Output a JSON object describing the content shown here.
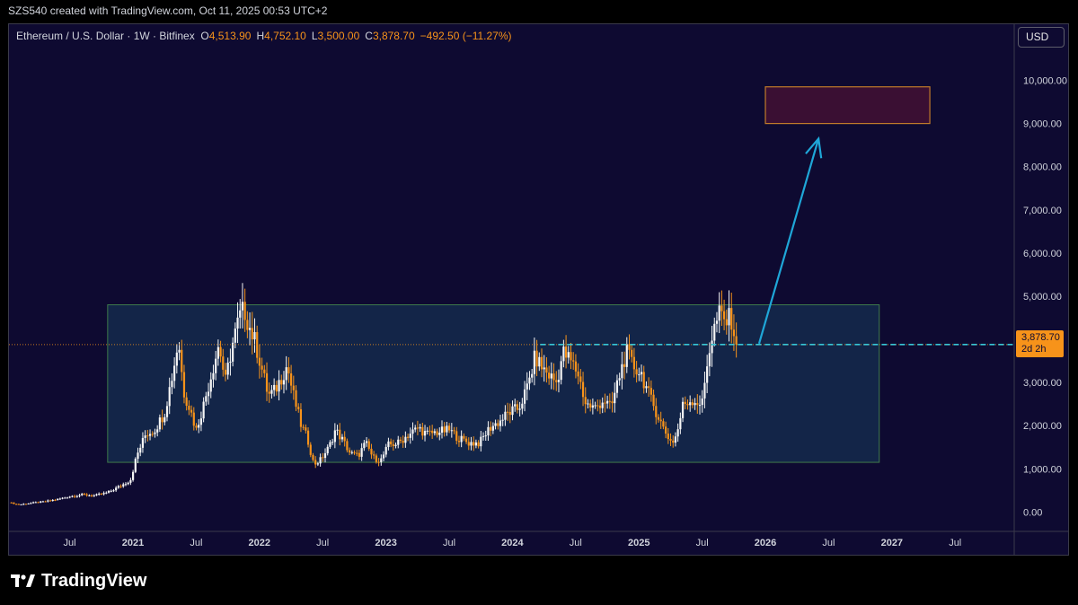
{
  "header": {
    "created_line": "SZS540 created with TradingView.com, Oct 11, 2025 00:53 UTC+2"
  },
  "legend": {
    "symbol": "Ethereum / U.S. Dollar · 1W · Bitfinex",
    "open_label": "O",
    "open": "4,513.90",
    "high_label": "H",
    "high": "4,752.10",
    "low_label": "L",
    "low": "3,500.00",
    "close_label": "C",
    "close": "3,878.70",
    "change": "−492.50 (−11.27%)"
  },
  "currency_button": "USD",
  "price_tag": {
    "price": "3,878.70",
    "countdown": "2d 2h"
  },
  "brand": {
    "name": "TradingView"
  },
  "colors": {
    "background": "#0e0a31",
    "up_candle": "#f5f5f5",
    "down_candle": "#f7931a",
    "range_box_border": "#3f7a4b",
    "range_box_fill": "#142a4c",
    "target_box_border": "#c07a2a",
    "target_box_fill": "#3a0f33",
    "arrow": "#1fa7d8",
    "current_price_line": "#38c7d6"
  },
  "chart_data": {
    "type": "candlestick",
    "title": "Ethereum / U.S. Dollar · 1W · Bitfinex",
    "y_ticks": [
      "10,000.00",
      "9,000.00",
      "8,000.00",
      "7,000.00",
      "6,000.00",
      "5,000.00",
      "4,000.00",
      "3,000.00",
      "2,000.00",
      "1,000.00",
      "0.00"
    ],
    "y_tick_values": [
      10000,
      9000,
      8000,
      7000,
      6000,
      5000,
      4000,
      3000,
      2000,
      1000,
      0
    ],
    "ylim": [
      -450,
      11300
    ],
    "x_ticks": [
      {
        "label": "Jul",
        "t": 2020.5
      },
      {
        "label": "2021",
        "t": 2021.0
      },
      {
        "label": "Jul",
        "t": 2021.5
      },
      {
        "label": "2022",
        "t": 2022.0
      },
      {
        "label": "Jul",
        "t": 2022.5
      },
      {
        "label": "2023",
        "t": 2023.0
      },
      {
        "label": "Jul",
        "t": 2023.5
      },
      {
        "label": "2024",
        "t": 2024.0
      },
      {
        "label": "Jul",
        "t": 2024.5
      },
      {
        "label": "2025",
        "t": 2025.0
      },
      {
        "label": "Jul",
        "t": 2025.5
      },
      {
        "label": "2026",
        "t": 2026.0
      },
      {
        "label": "Jul",
        "t": 2026.5
      },
      {
        "label": "2027",
        "t": 2027.0
      },
      {
        "label": "Jul",
        "t": 2027.5
      }
    ],
    "xlim": [
      2020.02,
      2027.96
    ],
    "current_price": 3878.7,
    "range_box": {
      "t_start": 2020.8,
      "t_end": 2026.9,
      "price_low": 1150,
      "price_high": 4800
    },
    "target_box": {
      "t_start": 2026.0,
      "t_end": 2027.3,
      "price_low": 9000,
      "price_high": 9850
    },
    "arrow": {
      "t_start": 2025.95,
      "price_start": 3900,
      "t_end": 2026.42,
      "price_end": 8650
    },
    "close_path": [
      [
        2020.02,
        220
      ],
      [
        2020.1,
        170
      ],
      [
        2020.2,
        210
      ],
      [
        2020.3,
        240
      ],
      [
        2020.4,
        290
      ],
      [
        2020.5,
        360
      ],
      [
        2020.6,
        400
      ],
      [
        2020.7,
        380
      ],
      [
        2020.8,
        450
      ],
      [
        2020.9,
        600
      ],
      [
        2020.98,
        740
      ],
      [
        2021.03,
        1300
      ],
      [
        2021.1,
        1800
      ],
      [
        2021.17,
        1900
      ],
      [
        2021.25,
        2300
      ],
      [
        2021.32,
        3300
      ],
      [
        2021.36,
        4000
      ],
      [
        2021.4,
        2800
      ],
      [
        2021.45,
        2400
      ],
      [
        2021.5,
        1900
      ],
      [
        2021.56,
        2500
      ],
      [
        2021.62,
        3200
      ],
      [
        2021.68,
        3900
      ],
      [
        2021.73,
        3000
      ],
      [
        2021.78,
        3800
      ],
      [
        2021.84,
        4500
      ],
      [
        2021.88,
        4700
      ],
      [
        2021.92,
        4300
      ],
      [
        2021.97,
        3900
      ],
      [
        2022.02,
        3300
      ],
      [
        2022.07,
        2700
      ],
      [
        2022.12,
        2800
      ],
      [
        2022.17,
        3100
      ],
      [
        2022.22,
        3400
      ],
      [
        2022.26,
        2800
      ],
      [
        2022.33,
        2000
      ],
      [
        2022.38,
        1700
      ],
      [
        2022.43,
        1100
      ],
      [
        2022.48,
        1200
      ],
      [
        2022.55,
        1500
      ],
      [
        2022.6,
        1900
      ],
      [
        2022.65,
        1700
      ],
      [
        2022.72,
        1350
      ],
      [
        2022.78,
        1300
      ],
      [
        2022.84,
        1600
      ],
      [
        2022.9,
        1250
      ],
      [
        2022.96,
        1200
      ],
      [
        2023.02,
        1550
      ],
      [
        2023.1,
        1600
      ],
      [
        2023.18,
        1800
      ],
      [
        2023.26,
        1950
      ],
      [
        2023.32,
        1800
      ],
      [
        2023.4,
        1850
      ],
      [
        2023.5,
        1900
      ],
      [
        2023.58,
        1700
      ],
      [
        2023.66,
        1600
      ],
      [
        2023.74,
        1600
      ],
      [
        2023.82,
        1950
      ],
      [
        2023.9,
        2100
      ],
      [
        2023.97,
        2300
      ],
      [
        2024.05,
        2400
      ],
      [
        2024.12,
        2900
      ],
      [
        2024.18,
        3600
      ],
      [
        2024.22,
        3400
      ],
      [
        2024.28,
        3200
      ],
      [
        2024.35,
        3000
      ],
      [
        2024.4,
        3700
      ],
      [
        2024.46,
        3500
      ],
      [
        2024.52,
        3200
      ],
      [
        2024.58,
        2500
      ],
      [
        2024.65,
        2400
      ],
      [
        2024.72,
        2600
      ],
      [
        2024.78,
        2400
      ],
      [
        2024.84,
        3100
      ],
      [
        2024.9,
        3700
      ],
      [
        2024.95,
        3400
      ],
      [
        2025.02,
        3200
      ],
      [
        2025.08,
        2700
      ],
      [
        2025.14,
        2300
      ],
      [
        2025.2,
        1900
      ],
      [
        2025.26,
        1600
      ],
      [
        2025.3,
        1800
      ],
      [
        2025.35,
        2500
      ],
      [
        2025.42,
        2600
      ],
      [
        2025.5,
        2500
      ],
      [
        2025.55,
        3700
      ],
      [
        2025.6,
        4300
      ],
      [
        2025.64,
        4600
      ],
      [
        2025.68,
        4400
      ],
      [
        2025.73,
        4500
      ],
      [
        2025.77,
        3878.7
      ]
    ]
  }
}
